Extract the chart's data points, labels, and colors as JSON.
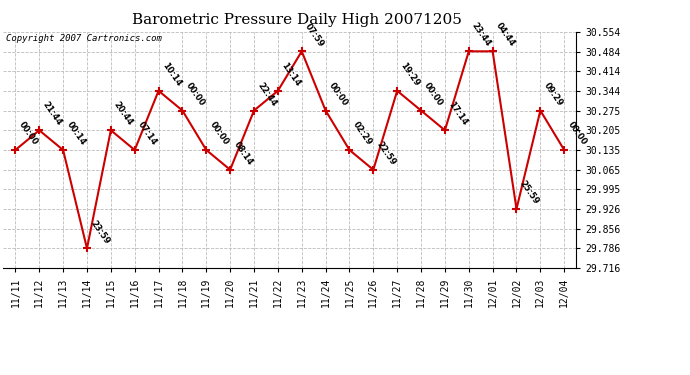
{
  "title": "Barometric Pressure Daily High 20071205",
  "copyright": "Copyright 2007 Cartronics.com",
  "x_labels": [
    "11/11",
    "11/12",
    "11/13",
    "11/14",
    "11/15",
    "11/16",
    "11/17",
    "11/18",
    "11/19",
    "11/20",
    "11/21",
    "11/22",
    "11/23",
    "11/24",
    "11/25",
    "11/26",
    "11/27",
    "11/28",
    "11/29",
    "11/30",
    "12/01",
    "12/02",
    "12/03",
    "12/04"
  ],
  "y_values": [
    30.135,
    30.205,
    30.135,
    29.786,
    30.205,
    30.135,
    30.345,
    30.275,
    30.135,
    30.065,
    30.275,
    30.345,
    30.485,
    30.275,
    30.135,
    30.065,
    30.345,
    30.275,
    30.205,
    30.485,
    30.485,
    29.926,
    30.275,
    30.135
  ],
  "point_labels": [
    "00:00",
    "21:44",
    "00:14",
    "23:59",
    "20:44",
    "07:14",
    "10:14",
    "00:00",
    "00:00",
    "08:14",
    "22:44",
    "13:14",
    "07:59",
    "00:00",
    "02:29",
    "22:59",
    "19:29",
    "00:00",
    "17:14",
    "23:44",
    "04:44",
    "25:59",
    "09:29",
    "00:00"
  ],
  "ylim_min": 29.716,
  "ylim_max": 30.554,
  "yticks": [
    29.716,
    29.786,
    29.856,
    29.926,
    29.995,
    30.065,
    30.135,
    30.205,
    30.275,
    30.344,
    30.414,
    30.484,
    30.554
  ],
  "ytick_labels": [
    "29.716",
    "29.786",
    "29.856",
    "29.926",
    "29.995",
    "30.065",
    "30.135",
    "30.205",
    "30.275",
    "30.344",
    "30.414",
    "30.484",
    "30.554"
  ],
  "line_color": "#cc0000",
  "marker_color": "#cc0000",
  "bg_color": "#ffffff",
  "grid_color": "#bbbbbb",
  "title_fontsize": 11,
  "copyright_fontsize": 6.5,
  "label_fontsize": 6,
  "tick_fontsize": 7,
  "label_rotation": -55
}
